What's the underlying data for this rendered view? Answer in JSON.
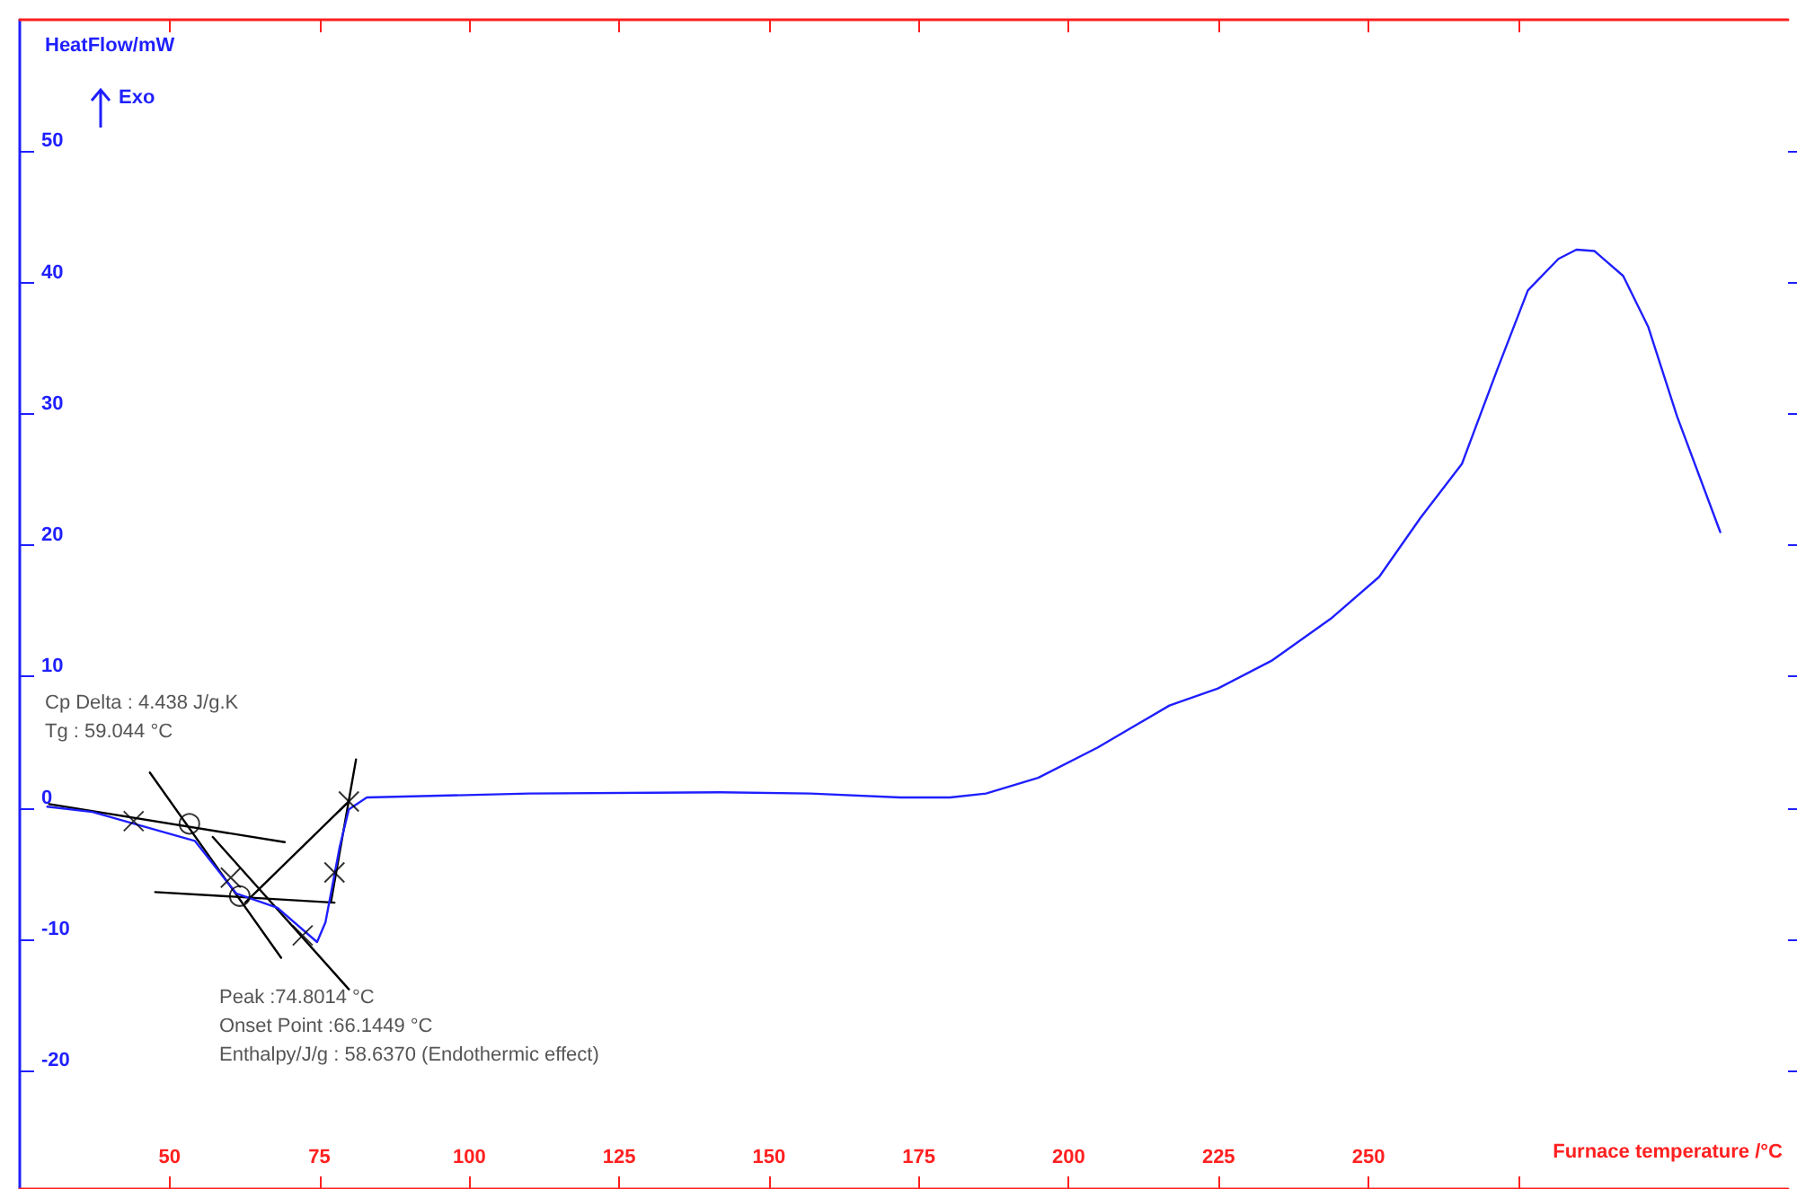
{
  "chart_data": {
    "type": "line",
    "xlabel": "Furnace temperature /°C",
    "ylabel": "HeatFlow/mW",
    "xlim": [
      25,
      320
    ],
    "ylim": [
      -29,
      60
    ],
    "xticks": [
      50,
      75,
      100,
      125,
      150,
      175,
      200,
      225,
      250,
      {
        "value": 275,
        "label": null
      }
    ],
    "yticks": [
      -20,
      -10,
      0,
      10,
      20,
      30,
      40,
      50
    ],
    "grid": false,
    "line_style": "solid",
    "annotations": [
      "Exo",
      "Cp Delta : 4.438 J/g.K",
      "Tg : 59.044 °C",
      "Peak :74.8014 °C",
      "Onset Point :66.1449 °C",
      "Enthalpy/J/g : 58.6370 (Endothermic effect)"
    ],
    "series": [
      {
        "color": "#1f1fff",
        "x": [
          29.6,
          37.1,
          54.2,
          61.1,
          68.0,
          74.6,
          76.0,
          78.4,
          79.9,
          82.9,
          109.9,
          141.9,
          156.9,
          171.9,
          180.2,
          186.2,
          194.9,
          204.8,
          216.8,
          224.9,
          233.8,
          243.7,
          251.8,
          258.7,
          265.6,
          271.6,
          276.6,
          281.7,
          284.7,
          287.7,
          292.5,
          296.7,
          301.5,
          308.7
        ],
        "values": [
          0.1,
          -0.3,
          -2.5,
          -6.5,
          -7.6,
          -10.2,
          -8.7,
          -2.9,
          -0.1,
          0.8,
          1.1,
          1.2,
          1.1,
          0.8,
          0.8,
          1.1,
          2.3,
          4.6,
          7.8,
          9.1,
          11.2,
          14.4,
          17.6,
          22.1,
          26.2,
          33.5,
          39.4,
          41.8,
          42.5,
          42.4,
          40.5,
          36.6,
          29.8,
          21.0
        ]
      },
      {
        "color": "#000000",
        "x": [
          29.9,
          69.2
        ],
        "values": [
          0.3,
          -2.6
        ]
      },
      {
        "color": "#000000",
        "x": [
          46.7,
          68.6
        ],
        "values": [
          2.7,
          -11.4
        ]
      },
      {
        "color": "#000000",
        "x": [
          47.6,
          77.5
        ],
        "values": [
          -6.4,
          -7.2
        ]
      },
      {
        "color": "#000000",
        "x": [
          57.2,
          79.9
        ],
        "values": [
          -2.2,
          -13.8
        ]
      },
      {
        "color": "#000000",
        "x": [
          62.6,
          79.9
        ],
        "values": [
          -7.2,
          0.5
        ]
      },
      {
        "color": "#000000",
        "x": [
          76.9,
          81.1
        ],
        "values": [
          -7.2,
          3.7
        ]
      },
      {
        "type": "scatter",
        "marker": "cross",
        "color": "#000000",
        "x": [
          44.0,
          60.2,
          72.2,
          77.5,
          79.9
        ],
        "values": [
          -1.0,
          -5.3,
          -9.7,
          -4.9,
          0.5
        ]
      },
      {
        "type": "scatter",
        "marker": "circle",
        "color": "#000000",
        "x": [
          53.3,
          61.7
        ],
        "values": [
          -1.2,
          -6.7
        ]
      }
    ]
  }
}
